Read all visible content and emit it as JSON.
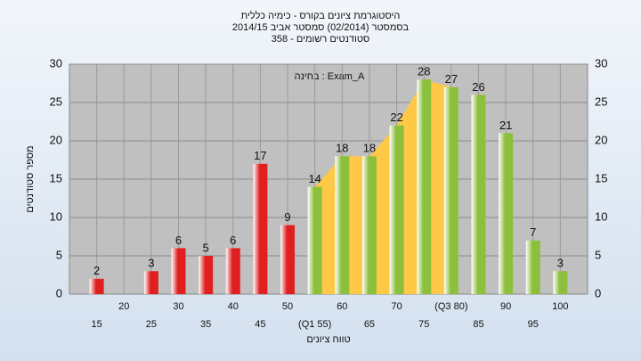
{
  "chart_data": {
    "type": "bar",
    "title": "היסטוגרמת ציונים בקורס - כימיה כללית",
    "subtitle": "בסמסטר  (02/2014)  סמסטר אביב 2014/15",
    "subtitle2": "סטודנטים רשומים - 358",
    "annotation": "בחינה : Exam_A",
    "y_label": "מספר סטודנטים",
    "x_label": "טווח ציונים",
    "categories": [
      "15",
      "20",
      "25",
      "30",
      "35",
      "40",
      "45",
      "50",
      "(Q1 55)",
      "60",
      "65",
      "70",
      "75",
      "(Q3 80)",
      "85",
      "90",
      "95",
      "100"
    ],
    "values": [
      2,
      0,
      3,
      6,
      5,
      6,
      17,
      9,
      14,
      18,
      18,
      22,
      28,
      27,
      26,
      21,
      7,
      3
    ],
    "colors": [
      "#e02020",
      "#e02020",
      "#e02020",
      "#e02020",
      "#e02020",
      "#e02020",
      "#e02020",
      "#e02020",
      "#8cbf3c",
      "#8cbf3c",
      "#8cbf3c",
      "#8cbf3c",
      "#8cbf3c",
      "#8cbf3c",
      "#8cbf3c",
      "#8cbf3c",
      "#8cbf3c",
      "#8cbf3c"
    ],
    "quartile_range": [
      8,
      13
    ],
    "quartile_color": "#ffc846",
    "ylim": [
      0,
      30
    ],
    "yticks": [
      0,
      5,
      10,
      15,
      20,
      25,
      30
    ],
    "y2lim": [
      0,
      30
    ],
    "y2ticks": [
      0,
      5,
      10,
      15,
      20,
      25,
      30
    ],
    "grid": true
  }
}
